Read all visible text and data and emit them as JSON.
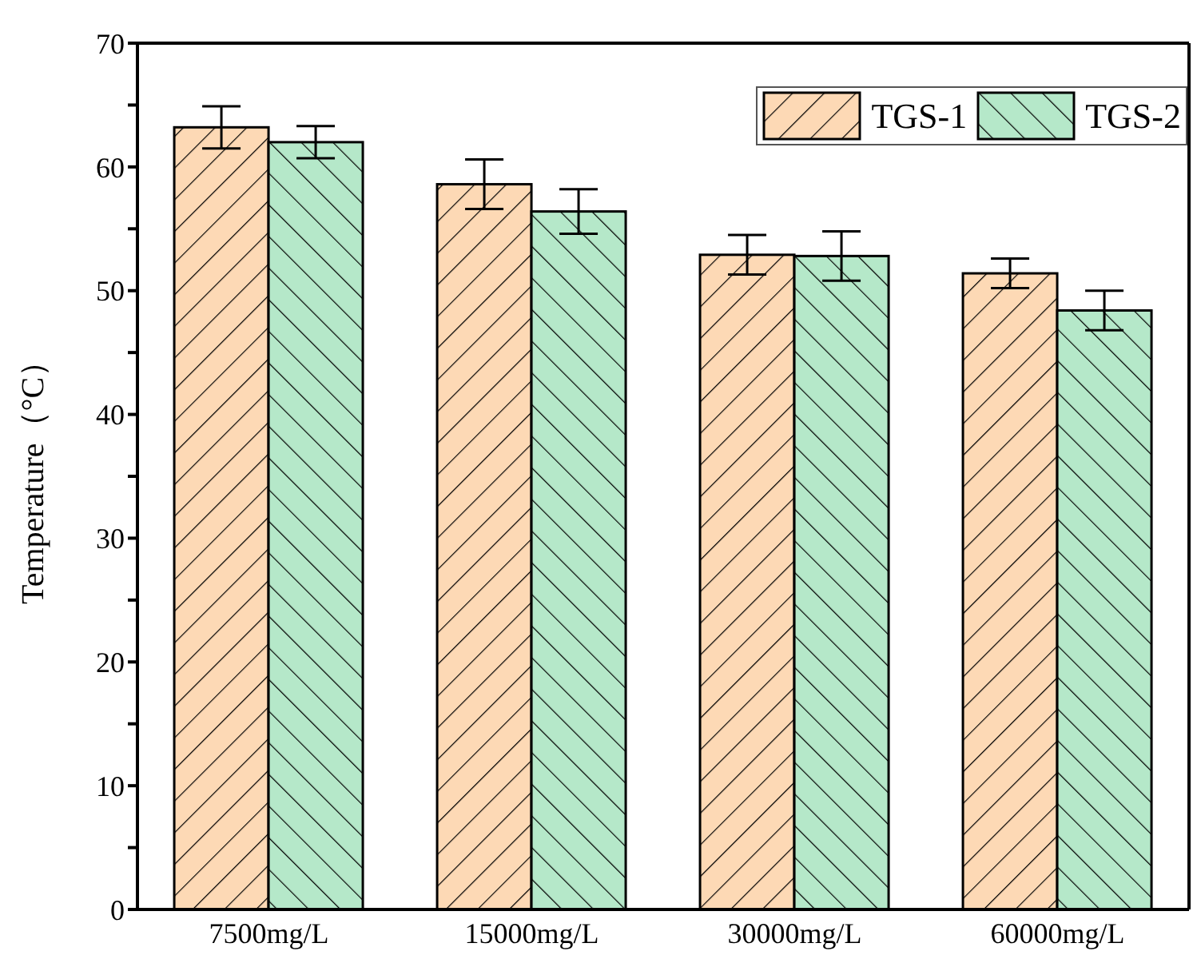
{
  "chart_data": {
    "type": "bar",
    "ylabel": "Temperature（°C）",
    "categories": [
      "7500mg/L",
      "15000mg/L",
      "30000mg/L",
      "60000mg/L"
    ],
    "series": [
      {
        "name": "TGS-1",
        "color": "#fdd9b5",
        "values": [
          63.2,
          58.6,
          52.9,
          51.4
        ],
        "errors": [
          1.7,
          2.0,
          1.6,
          1.2
        ]
      },
      {
        "name": "TGS-2",
        "color": "#b5e8c9",
        "values": [
          62.0,
          56.4,
          52.8,
          48.4
        ],
        "errors": [
          1.3,
          1.8,
          2.0,
          1.6
        ]
      }
    ],
    "ylim": [
      0,
      70
    ],
    "yticks": [
      0,
      {
        "value": 5,
        "label": null
      },
      10,
      {
        "value": 15,
        "label": null
      },
      20,
      {
        "value": 25,
        "label": null
      },
      30,
      {
        "value": 35,
        "label": null
      },
      40,
      {
        "value": 45,
        "label": null
      },
      50,
      {
        "value": 55,
        "label": null
      },
      60,
      {
        "value": 65,
        "label": null
      },
      70
    ],
    "grid": false,
    "legend": "top right"
  }
}
